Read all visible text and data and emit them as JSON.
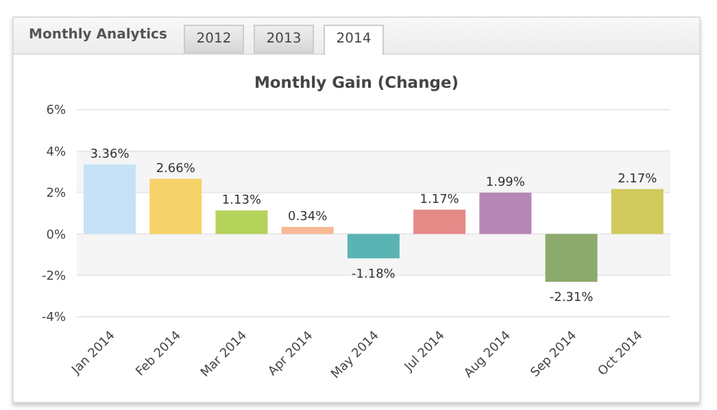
{
  "chart_data": {
    "type": "bar",
    "title": "Monthly Gain (Change)",
    "annotations": [
      "Monthly Analytics",
      "2012",
      "2013",
      "2014"
    ],
    "categories": [
      "Jan 2014",
      "Feb 2014",
      "Mar 2014",
      "Apr 2014",
      "May 2014",
      "Jul 2014",
      "Aug 2014",
      "Sep 2014",
      "Oct 2014"
    ],
    "values": [
      3.36,
      2.66,
      1.13,
      0.34,
      -1.18,
      1.17,
      1.99,
      -2.31,
      2.17
    ],
    "colors": [
      "#c6e2f6",
      "#f6d36a",
      "#b5d35a",
      "#f8b896",
      "#5ab4b4",
      "#e58a87",
      "#b787b7",
      "#8daa6d",
      "#cfca5b"
    ],
    "value_labels": [
      "3.36%",
      "2.66%",
      "1.13%",
      "0.34%",
      "-1.18%",
      "1.17%",
      "1.99%",
      "-2.31%",
      "2.17%"
    ],
    "ylim": [
      -4,
      6
    ],
    "yticks": [
      {
        "value": -4,
        "label": "-4%"
      },
      {
        "value": -2,
        "label": "-2%"
      },
      {
        "value": 0,
        "label": "0%"
      },
      {
        "value": 2,
        "label": "2%"
      },
      {
        "value": 4,
        "label": "4%"
      },
      {
        "value": 6,
        "label": "6%"
      }
    ],
    "grid": "y"
  }
}
